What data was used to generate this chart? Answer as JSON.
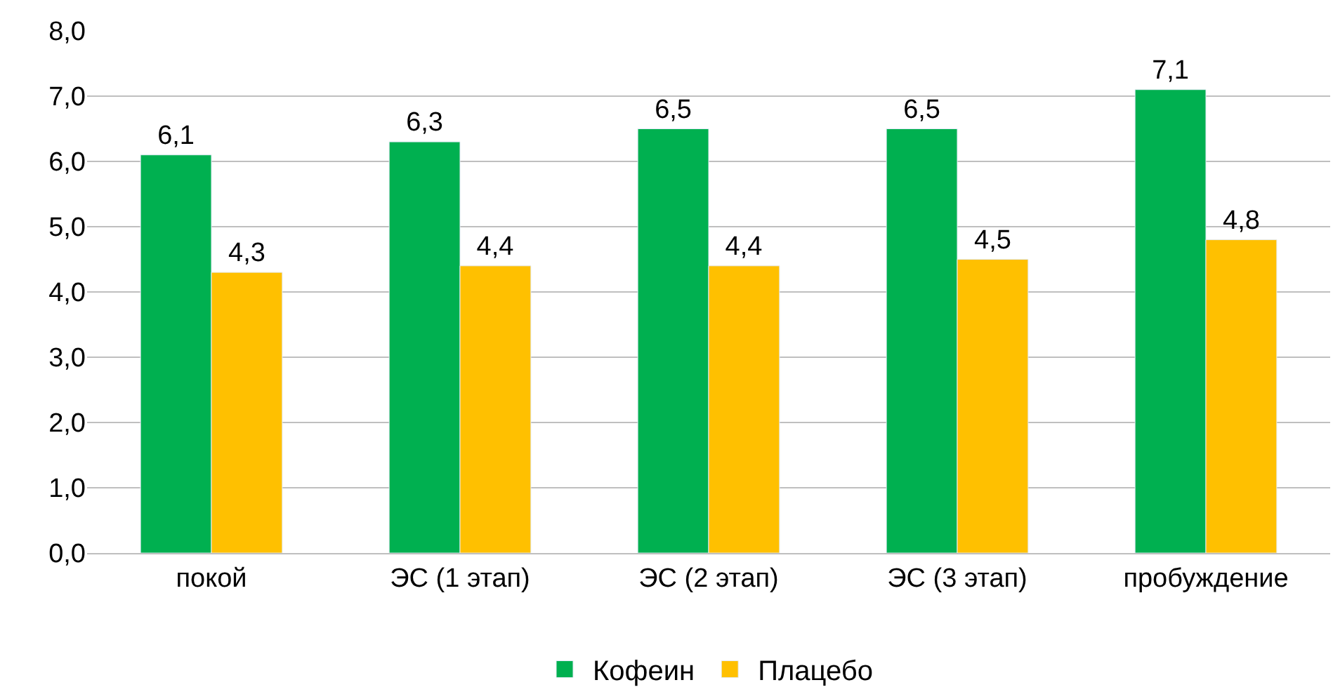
{
  "chart_data": {
    "type": "bar",
    "categories": [
      "покой",
      "ЭС (1 этап)",
      "ЭС (2 этап)",
      "ЭС (3 этап)",
      "пробуждение"
    ],
    "series": [
      {
        "name": "Кофеин",
        "color": "#00b050",
        "values": [
          6.1,
          6.3,
          6.5,
          6.5,
          7.1
        ],
        "value_labels": [
          "6,1",
          "6,3",
          "6,5",
          "6,5",
          "7,1"
        ]
      },
      {
        "name": "Плацебо",
        "color": "#ffc000",
        "values": [
          4.3,
          4.4,
          4.4,
          4.5,
          4.8
        ],
        "value_labels": [
          "4,3",
          "4,4",
          "4,4",
          "4,5",
          "4,8"
        ]
      }
    ],
    "ylim": [
      0,
      8
    ],
    "yticks": [
      {
        "value": 0,
        "label": "0,0"
      },
      {
        "value": 1,
        "label": "1,0"
      },
      {
        "value": 2,
        "label": "2,0"
      },
      {
        "value": 3,
        "label": "3,0"
      },
      {
        "value": 4,
        "label": "4,0"
      },
      {
        "value": 5,
        "label": "5,0"
      },
      {
        "value": 6,
        "label": "6,0"
      },
      {
        "value": 7,
        "label": "7,0"
      },
      {
        "value": 8,
        "label": "8,0"
      }
    ],
    "grid": "y",
    "legend": "bottom"
  }
}
